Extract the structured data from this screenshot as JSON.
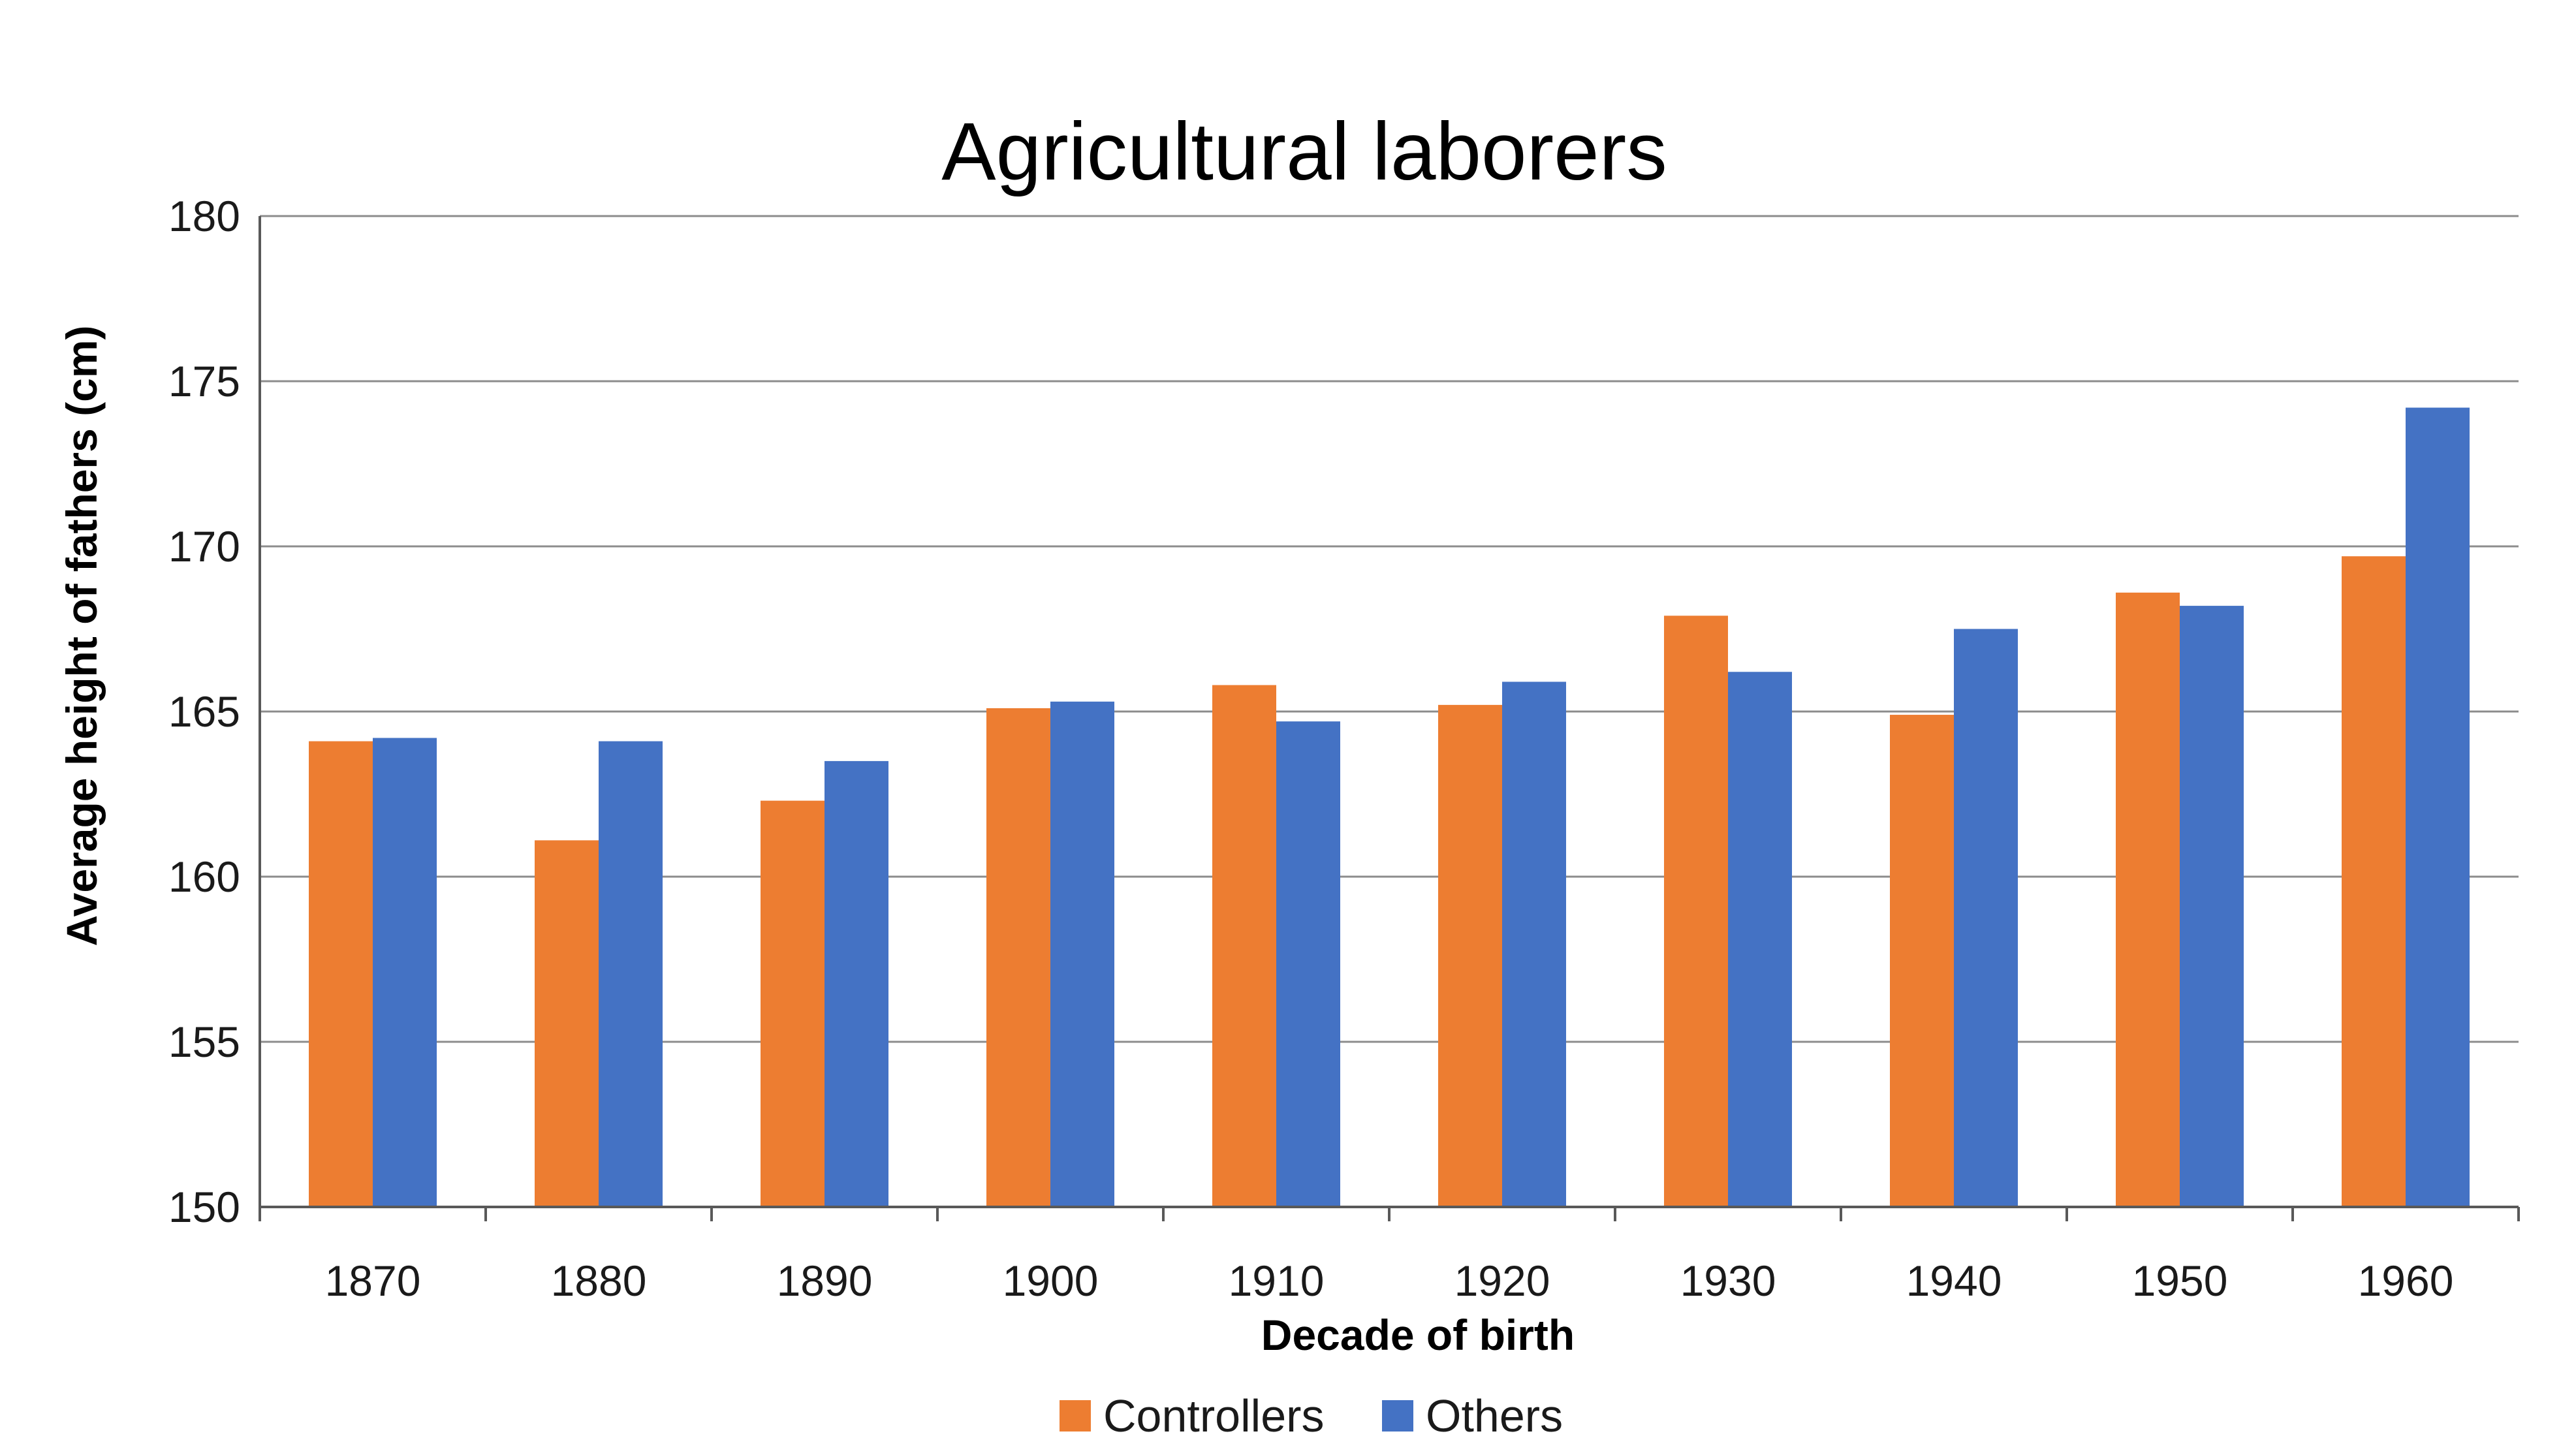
{
  "chart_data": {
    "type": "bar",
    "title": "Agricultural laborers",
    "xlabel": "Decade of birth",
    "ylabel": "Average height of fathers (cm)",
    "ylim": [
      150,
      180
    ],
    "yticks": [
      150,
      155,
      160,
      165,
      170,
      175,
      180
    ],
    "grid": true,
    "legend_position": "bottom",
    "categories": [
      "1870",
      "1880",
      "1890",
      "1900",
      "1910",
      "1920",
      "1930",
      "1940",
      "1950",
      "1960"
    ],
    "series": [
      {
        "name": "Controllers",
        "color": "#ED7D31",
        "values": [
          164.1,
          161.1,
          162.3,
          165.1,
          165.8,
          165.2,
          167.9,
          164.9,
          168.6,
          169.7
        ]
      },
      {
        "name": "Others",
        "color": "#4472C4",
        "values": [
          164.2,
          164.1,
          163.5,
          165.3,
          164.7,
          165.9,
          166.2,
          167.5,
          168.2,
          174.2
        ]
      }
    ]
  }
}
